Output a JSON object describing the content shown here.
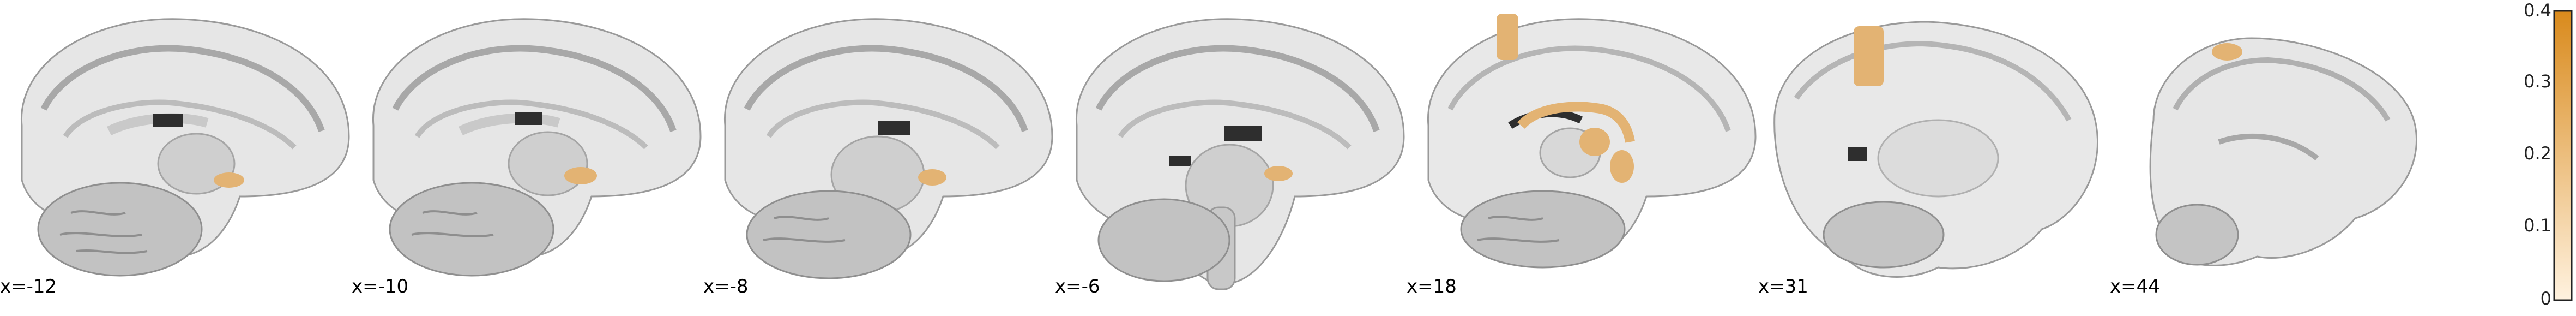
{
  "slices": [
    {
      "label": "x=-12",
      "shape": "medial"
    },
    {
      "label": "x=-10",
      "shape": "medial"
    },
    {
      "label": "x=-8",
      "shape": "medial"
    },
    {
      "label": "x=-6",
      "shape": "medial"
    },
    {
      "label": "x=18",
      "shape": "para"
    },
    {
      "label": "x=31",
      "shape": "lateral"
    },
    {
      "label": "x=44",
      "shape": "lateral-small"
    }
  ],
  "colorbar": {
    "ticks": [
      "0.4",
      "0.3",
      "0.2",
      "0.1",
      "0"
    ],
    "color_low": "#fff2df",
    "color_high": "#d98a1c"
  },
  "colors": {
    "brain_light": "#e4e4e4",
    "brain_mid": "#b9b9b9",
    "brain_dark": "#8c8c8c",
    "ventricle": "#2e2e2e",
    "overlay": "#e3b373"
  }
}
